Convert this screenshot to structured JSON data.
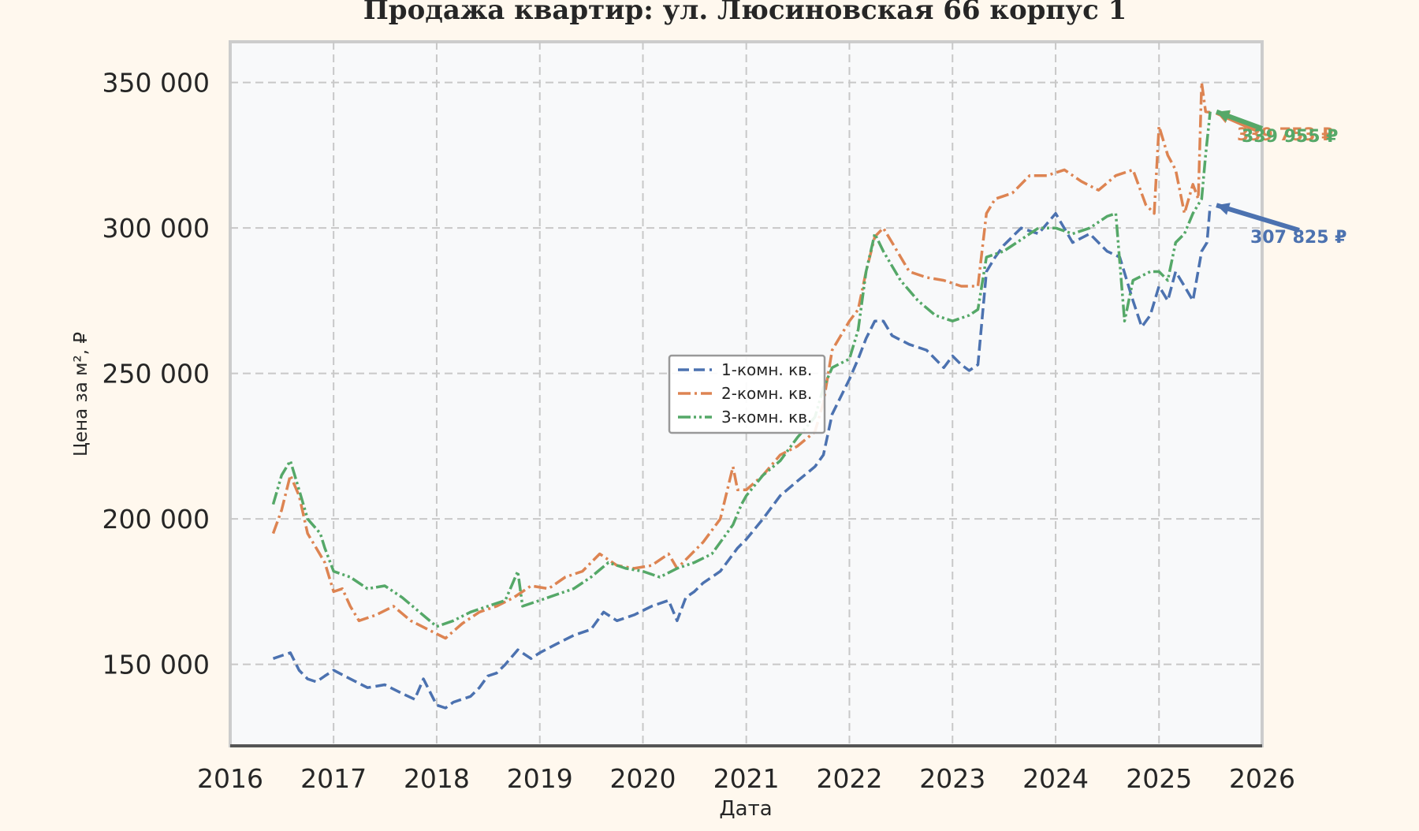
{
  "chart_data": {
    "type": "line",
    "title": "Продажа квартир: ул. Люсиновская 66 корпус 1",
    "xlabel": "Дата",
    "ylabel": "Цена за м², ₽",
    "x_axis": {
      "type": "date",
      "range": [
        "2016-01-01",
        "2026-01-01"
      ],
      "ticks": [
        "2016",
        "2017",
        "2018",
        "2019",
        "2020",
        "2021",
        "2022",
        "2023",
        "2024",
        "2025",
        "2026"
      ]
    },
    "y_axis": {
      "range": [
        122000,
        364000
      ],
      "ticks": [
        150000,
        200000,
        250000,
        300000,
        350000
      ],
      "tick_labels": [
        "150 000",
        "200 000",
        "250 000",
        "300 000",
        "350 000"
      ]
    },
    "grid": true,
    "legend_position": "center",
    "colors": {
      "1k": "#4c72b0",
      "2k": "#dd8452",
      "3k": "#55a868",
      "background": "#fff8ee",
      "plot_bg": "#f8f9fa",
      "grid": "#c8c8c8"
    },
    "series": [
      {
        "name": "1-комн. кв.",
        "key": "1k",
        "dash": "dashed",
        "x": [
          "2016-06-01",
          "2016-07-01",
          "2016-08-01",
          "2016-09-01",
          "2016-10-01",
          "2016-11-01",
          "2016-12-01",
          "2017-01-01",
          "2017-03-01",
          "2017-05-01",
          "2017-07-01",
          "2017-09-01",
          "2017-10-15",
          "2017-11-15",
          "2018-01-01",
          "2018-02-01",
          "2018-03-01",
          "2018-05-01",
          "2018-06-01",
          "2018-07-01",
          "2018-08-01",
          "2018-09-01",
          "2018-10-15",
          "2018-12-01",
          "2019-01-01",
          "2019-03-01",
          "2019-05-01",
          "2019-07-01",
          "2019-08-15",
          "2019-10-01",
          "2019-12-01",
          "2020-02-01",
          "2020-04-01",
          "2020-05-01",
          "2020-06-01",
          "2020-07-01",
          "2020-08-01",
          "2020-10-01",
          "2020-12-01",
          "2021-01-01",
          "2021-03-01",
          "2021-05-01",
          "2021-07-01",
          "2021-09-01",
          "2021-10-01",
          "2021-11-01",
          "2022-01-01",
          "2022-02-01",
          "2022-03-01",
          "2022-04-01",
          "2022-05-01",
          "2022-06-01",
          "2022-08-01",
          "2022-10-01",
          "2022-12-01",
          "2023-01-01",
          "2023-02-01",
          "2023-03-01",
          "2023-04-01",
          "2023-05-01",
          "2023-06-01",
          "2023-07-01",
          "2023-09-01",
          "2023-11-01",
          "2024-01-01",
          "2024-03-01",
          "2024-05-01",
          "2024-07-01",
          "2024-08-15",
          "2024-10-01",
          "2024-11-01",
          "2024-12-01",
          "2025-01-01",
          "2025-02-01",
          "2025-03-01",
          "2025-04-01",
          "2025-05-01",
          "2025-06-01",
          "2025-06-20",
          "2025-07-01"
        ],
        "y": [
          152000,
          153000,
          154000,
          148000,
          145000,
          144000,
          146000,
          148000,
          145000,
          142000,
          143000,
          140000,
          138000,
          145000,
          136000,
          135000,
          137000,
          139000,
          142000,
          146000,
          147000,
          150000,
          155000,
          152000,
          154000,
          157000,
          160000,
          162000,
          168000,
          165000,
          167000,
          170000,
          172000,
          165000,
          173000,
          175000,
          178000,
          182000,
          190000,
          193000,
          200000,
          208000,
          213000,
          218000,
          222000,
          236000,
          248000,
          255000,
          262000,
          268000,
          268000,
          263000,
          260000,
          258000,
          252000,
          256000,
          253000,
          251000,
          253000,
          285000,
          290000,
          294000,
          300000,
          298000,
          305000,
          295000,
          298000,
          292000,
          290000,
          275000,
          266000,
          270000,
          280000,
          275000,
          285000,
          280000,
          275000,
          292000,
          295000,
          307825
        ]
      },
      {
        "name": "2-комн. кв.",
        "key": "2k",
        "dash": "dashdot",
        "x": [
          "2016-06-01",
          "2016-07-01",
          "2016-08-01",
          "2016-09-01",
          "2016-10-01",
          "2016-12-01",
          "2017-01-01",
          "2017-02-01",
          "2017-03-01",
          "2017-04-01",
          "2017-06-01",
          "2017-08-01",
          "2017-10-01",
          "2017-12-01",
          "2018-02-01",
          "2018-04-01",
          "2018-06-01",
          "2018-08-01",
          "2018-10-01",
          "2018-12-01",
          "2019-02-01",
          "2019-04-01",
          "2019-06-01",
          "2019-08-01",
          "2019-10-01",
          "2019-12-01",
          "2020-02-01",
          "2020-04-01",
          "2020-05-01",
          "2020-06-01",
          "2020-08-01",
          "2020-10-01",
          "2020-11-15",
          "2020-12-01",
          "2021-01-01",
          "2021-03-01",
          "2021-05-01",
          "2021-07-01",
          "2021-09-01",
          "2021-10-01",
          "2021-11-01",
          "2022-01-01",
          "2022-02-01",
          "2022-03-01",
          "2022-04-01",
          "2022-05-01",
          "2022-06-01",
          "2022-08-01",
          "2022-10-01",
          "2022-12-01",
          "2023-02-01",
          "2023-04-01",
          "2023-05-01",
          "2023-06-01",
          "2023-08-01",
          "2023-10-01",
          "2023-12-01",
          "2024-02-01",
          "2024-04-01",
          "2024-06-01",
          "2024-08-01",
          "2024-10-01",
          "2024-11-15",
          "2024-12-15",
          "2025-01-01",
          "2025-02-01",
          "2025-03-01",
          "2025-04-01",
          "2025-05-01",
          "2025-05-20",
          "2025-06-01",
          "2025-06-15",
          "2025-07-01"
        ],
        "y": [
          195000,
          203000,
          215000,
          208000,
          195000,
          185000,
          175000,
          176000,
          170000,
          165000,
          167000,
          170000,
          165000,
          162000,
          159000,
          164000,
          168000,
          170000,
          173000,
          177000,
          176000,
          180000,
          182000,
          188000,
          184000,
          183000,
          184000,
          188000,
          183000,
          186000,
          192000,
          200000,
          218000,
          210000,
          210000,
          215000,
          222000,
          225000,
          230000,
          240000,
          258000,
          268000,
          272000,
          285000,
          297000,
          300000,
          295000,
          285000,
          283000,
          282000,
          280000,
          280000,
          305000,
          310000,
          312000,
          318000,
          318000,
          320000,
          316000,
          313000,
          318000,
          320000,
          308000,
          305000,
          335000,
          325000,
          320000,
          305000,
          315000,
          310000,
          350000,
          340000,
          339753
        ]
      },
      {
        "name": "3-комн. кв.",
        "key": "3k",
        "dash": "dashdotdot",
        "x": [
          "2016-06-01",
          "2016-07-01",
          "2016-08-01",
          "2016-09-01",
          "2016-10-01",
          "2016-11-15",
          "2016-12-01",
          "2017-01-01",
          "2017-03-01",
          "2017-05-01",
          "2017-07-01",
          "2017-09-01",
          "2017-11-01",
          "2018-01-01",
          "2018-03-01",
          "2018-05-01",
          "2018-07-01",
          "2018-09-01",
          "2018-10-15",
          "2018-11-01",
          "2019-01-01",
          "2019-03-01",
          "2019-05-01",
          "2019-07-01",
          "2019-09-01",
          "2019-11-01",
          "2020-01-01",
          "2020-03-01",
          "2020-05-01",
          "2020-07-01",
          "2020-09-01",
          "2020-11-15",
          "2020-12-15",
          "2021-01-01",
          "2021-03-01",
          "2021-05-01",
          "2021-07-01",
          "2021-09-01",
          "2021-10-01",
          "2021-11-01",
          "2022-01-01",
          "2022-02-01",
          "2022-03-01",
          "2022-04-01",
          "2022-05-01",
          "2022-07-01",
          "2022-09-01",
          "2022-11-01",
          "2023-01-01",
          "2023-03-01",
          "2023-04-01",
          "2023-05-01",
          "2023-07-01",
          "2023-09-01",
          "2023-11-01",
          "2024-01-01",
          "2024-03-01",
          "2024-05-01",
          "2024-07-01",
          "2024-08-01",
          "2024-09-01",
          "2024-10-01",
          "2024-12-01",
          "2025-01-01",
          "2025-02-01",
          "2025-03-01",
          "2025-04-01",
          "2025-05-01",
          "2025-06-01",
          "2025-06-15",
          "2025-07-01"
        ],
        "y": [
          205000,
          215000,
          220000,
          210000,
          200000,
          195000,
          190000,
          182000,
          180000,
          176000,
          177000,
          173000,
          168000,
          163000,
          165000,
          168000,
          170000,
          172000,
          182000,
          170000,
          172000,
          174000,
          176000,
          180000,
          185000,
          183000,
          182000,
          180000,
          183000,
          185000,
          188000,
          198000,
          205000,
          208000,
          215000,
          220000,
          228000,
          235000,
          245000,
          252000,
          255000,
          265000,
          285000,
          298000,
          292000,
          282000,
          275000,
          270000,
          268000,
          270000,
          272000,
          290000,
          292000,
          296000,
          300000,
          300000,
          298000,
          300000,
          304000,
          305000,
          268000,
          282000,
          285000,
          285000,
          282000,
          295000,
          298000,
          305000,
          310000,
          325000,
          339955
        ]
      }
    ],
    "annotations": [
      {
        "series": "1k",
        "x": "2025-07-01",
        "y": 307825,
        "text": "307 825 ₽"
      },
      {
        "series": "2k",
        "x": "2025-07-01",
        "y": 339753,
        "text": "339 753 ₽"
      },
      {
        "series": "3k",
        "x": "2025-07-01",
        "y": 339955,
        "text": "339 955 ₽"
      }
    ]
  }
}
